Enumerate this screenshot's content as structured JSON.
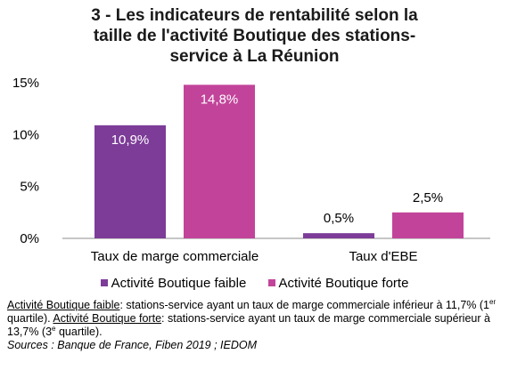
{
  "title_lines": [
    "3 - Les indicateurs de rentabilité selon la",
    "taille de l'activité Boutique des stations-",
    "service à La Réunion"
  ],
  "colors": {
    "faible": "#7d3c98",
    "forte": "#c2449a",
    "grid": "#d9d9d9",
    "axis": "#8c8c8c"
  },
  "chart_data": {
    "type": "bar",
    "title": "3 - Les indicateurs de rentabilité selon la taille de l'activité Boutique des stations-service à La Réunion",
    "categories": [
      "Taux de marge commerciale",
      "Taux d'EBE"
    ],
    "series": [
      {
        "name": "Activité Boutique faible",
        "values": [
          10.9,
          0.5
        ],
        "labels": [
          "10,9%",
          "0,5%"
        ]
      },
      {
        "name": "Activité Boutique forte",
        "values": [
          14.8,
          2.5
        ],
        "labels": [
          "14,8%",
          "2,5%"
        ]
      }
    ],
    "ylim": [
      0,
      15
    ],
    "yticks": [
      0,
      5,
      10,
      15
    ],
    "ytick_labels": [
      "0%",
      "5%",
      "10%",
      "15%"
    ],
    "grid": false,
    "legend": "bottom"
  },
  "note": {
    "faible_term": "Activité Boutique faible",
    "faible_def": ": stations-service ayant un taux de marge commerciale inférieur à 11,7% (1",
    "faible_sup": "er",
    "faible_end": " quartile). ",
    "forte_term": "Activité Boutique forte",
    "forte_def": ": stations-service ayant un taux de marge commerciale supérieur à 13,7% (3",
    "forte_sup": "e",
    "forte_end": " quartile).",
    "sources": "Sources : Banque de France, Fiben 2019 ; IEDOM"
  }
}
